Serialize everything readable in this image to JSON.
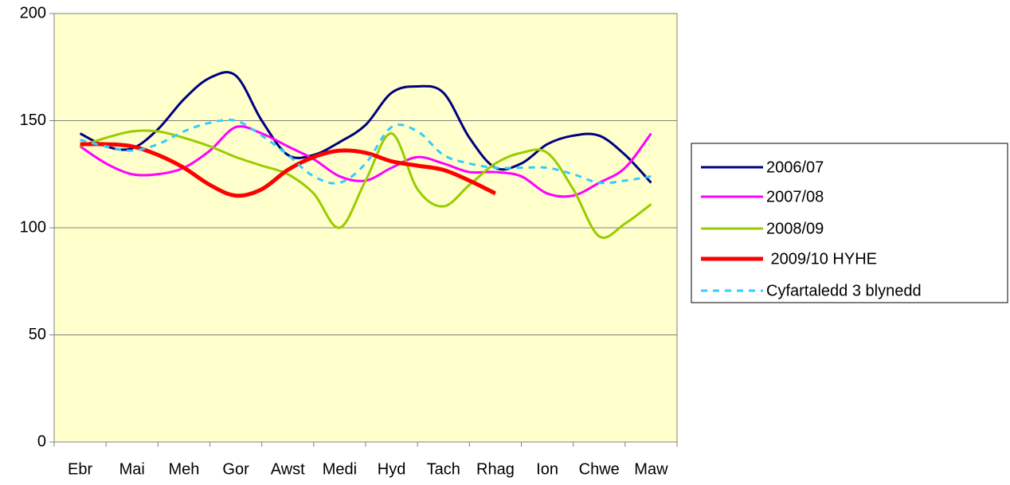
{
  "chart_data": {
    "type": "line",
    "categories": [
      "Ebr",
      null,
      "Mai",
      null,
      "Meh",
      null,
      "Gor",
      null,
      "Awst",
      null,
      "Medi",
      null,
      "Hyd",
      null,
      "Tach",
      null,
      "Rhag",
      null,
      "Ion",
      null,
      "Chwe",
      null,
      "Maw"
    ],
    "series": [
      {
        "name": "2006/07",
        "color": "#000080",
        "values": [
          144,
          138,
          137,
          146,
          160,
          170,
          171,
          150,
          134,
          134,
          140,
          148,
          163,
          166,
          163,
          142,
          128,
          130,
          139,
          143,
          143,
          134,
          121
        ]
      },
      {
        "name": "2007/08",
        "color": "#ff00ff",
        "values": [
          138,
          130,
          125,
          125,
          128,
          136,
          147,
          144,
          138,
          132,
          124,
          122,
          128,
          133,
          130,
          126,
          126,
          124,
          116,
          115,
          121,
          128,
          144
        ]
      },
      {
        "name": "2008/09",
        "color": "#99cc00",
        "values": [
          138,
          142,
          145,
          145,
          142,
          138,
          133,
          129,
          125,
          116,
          100,
          122,
          144,
          118,
          110,
          120,
          130,
          135,
          135,
          118,
          96,
          102,
          111
        ]
      },
      {
        "name": " 2009/10 HYHE",
        "color": "#ff0000",
        "values": [
          139,
          139,
          138,
          134,
          128,
          120,
          115,
          118,
          127,
          133,
          136,
          135,
          131,
          129,
          127,
          122,
          116,
          null,
          null,
          null,
          null,
          null,
          null
        ]
      },
      {
        "name": "Cyfartaledd 3 blynedd",
        "color": "#33ccff",
        "dashed": true,
        "values": [
          141,
          138,
          136,
          139,
          145,
          149,
          150,
          143,
          134,
          124,
          121,
          130,
          147,
          145,
          134,
          130,
          128,
          128,
          128,
          125,
          121,
          122,
          124
        ]
      }
    ],
    "ylim": [
      0,
      200
    ],
    "yticks": [
      0,
      50,
      100,
      150,
      200
    ],
    "grid": true,
    "legend": "right"
  }
}
